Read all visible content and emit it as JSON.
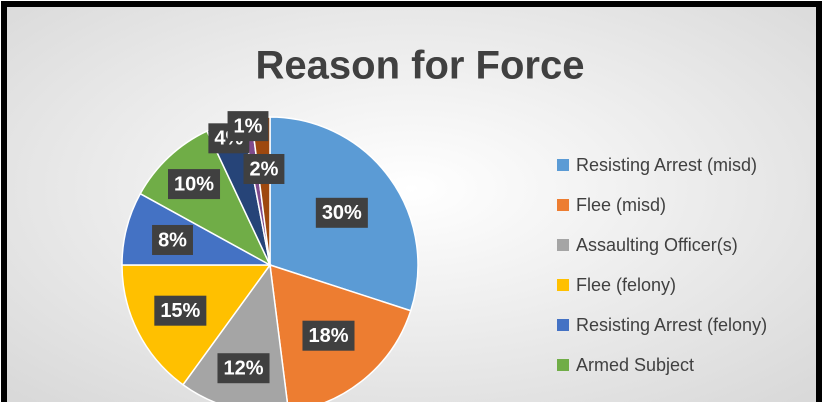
{
  "chart_data": {
    "type": "pie",
    "title": "Reason for Force",
    "categories": [
      "Resisting Arrest (misd)",
      "Flee (misd)",
      "Assaulting Officer(s)",
      "Flee (felony)",
      "Resisting Arrest (felony)",
      "Armed Subject",
      null,
      null,
      null
    ],
    "values": [
      30,
      18,
      12,
      15,
      8,
      10,
      4,
      1,
      2
    ],
    "value_labels": [
      "30%",
      "18%",
      "12%",
      "15%",
      "8%",
      "10%",
      "4%",
      "1%",
      "2%"
    ],
    "colors": [
      "#5b9bd5",
      "#ed7d31",
      "#a5a5a5",
      "#ffc000",
      "#4472c4",
      "#70ad47",
      "#264478",
      "#7f4a8c",
      "#9e480e"
    ],
    "legend": "right"
  }
}
